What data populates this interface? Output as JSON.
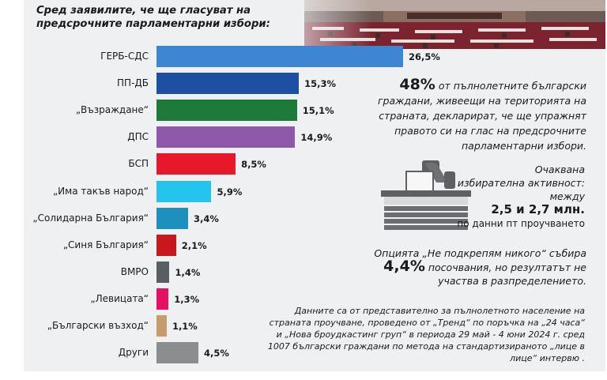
{
  "title": "Сред заявилите, че ще гласуват на предсрочните парламентарни избори:",
  "chart_data": {
    "type": "bar",
    "orientation": "horizontal",
    "categories": [
      "ГЕРБ-СДС",
      "ПП-ДБ",
      "„Възраждане“",
      "ДПС",
      "БСП",
      "„Има такъв народ“",
      "„Солидарна България“",
      "„Синя България“",
      "ВМРО",
      "„Левицата“",
      "„Български възход“",
      "Други"
    ],
    "values": [
      26.5,
      15.3,
      15.1,
      14.9,
      8.5,
      5.9,
      3.4,
      2.1,
      1.4,
      1.3,
      1.1,
      4.5
    ],
    "value_labels": [
      "26,5%",
      "15,3%",
      "15,1%",
      "14,9%",
      "8,5%",
      "5,9%",
      "3,4%",
      "2,1%",
      "1,4%",
      "1,3%",
      "1,1%",
      "4,5%"
    ],
    "colors": [
      "#3f86d2",
      "#1d4fa3",
      "#1e7a3b",
      "#8e59ab",
      "#e6192b",
      "#24c4ef",
      "#1d90bd",
      "#c8181e",
      "#5a5e61",
      "#e60f62",
      "#c69c6c",
      "#8b8d8f"
    ],
    "unit": "%",
    "xlim": [
      0,
      30
    ],
    "grid": false,
    "legend": "none"
  },
  "stat48": {
    "value": "48%",
    "text": "от пълнолетните български граждани, живеещи на територията на страната, декларират, че ще упражнят правото си на глас на предсрочните парламентарни избори."
  },
  "turnout": {
    "line1": "Очаквана",
    "line2": "избирателна активност:",
    "line3": "между",
    "range": "2,5 и 2,7 млн.",
    "source": "по данни пт проучването"
  },
  "none_option": {
    "text_a": "Опцията „Не подкрепям никого“ събира",
    "value": "4,4%",
    "text_b": "посочвания, но резултатът не участва в разпределението."
  },
  "footnote": "Данните са от представително за пълнолетното население на страната проучване, проведено от „Тренд“ по поръчка на „24 часа“ и „Нова броудкастинг груп“ в периода 29 май - 4 юни 2024 г. сред 1007 български граждани по метода на стандартизираното „лице в лице“ интервю .",
  "icons": [
    "parliament-photo",
    "ballot-box-icon"
  ]
}
